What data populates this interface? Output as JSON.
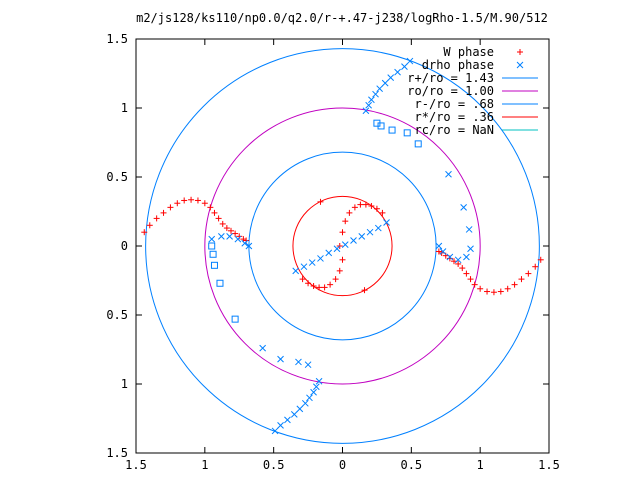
{
  "chart_data": {
    "type": "scatter",
    "title": "m2/js128/ks110/np0.0/q2.0/r-+.47-j238/logRho-1.5/M.90/512",
    "xlabel": "",
    "ylabel": "",
    "xlim": [
      -1.5,
      1.5
    ],
    "ylim": [
      -1.5,
      1.5
    ],
    "x_ticks": [
      "1.5",
      "1",
      "0.5",
      "0",
      "0.5",
      "1",
      "1.5"
    ],
    "y_ticks": [
      "1.5",
      "1",
      "0.5",
      "0",
      "0.5",
      "1",
      "1.5"
    ],
    "grid": false,
    "legend_position": "top-right",
    "legend": [
      {
        "label": "W phase",
        "color": "#ff0000",
        "marker": "plus"
      },
      {
        "label": "drho phase",
        "color": "#0080ff",
        "marker": "cross"
      },
      {
        "label": "r+/ro = 1.43",
        "color": "#0080ff",
        "marker": "line"
      },
      {
        "label": "ro/ro = 1.00",
        "color": "#c000c0",
        "marker": "line"
      },
      {
        "label": "r-/ro = .68",
        "color": "#0080ff",
        "marker": "line"
      },
      {
        "label": "r*/ro = .36",
        "color": "#ff0000",
        "marker": "line"
      },
      {
        "label": "rc/ro = NaN",
        "color": "#00c0c0",
        "marker": "line"
      }
    ],
    "circles": [
      {
        "r": 1.43,
        "color": "#0080ff"
      },
      {
        "r": 1.0,
        "color": "#c000c0"
      },
      {
        "r": 0.68,
        "color": "#0080ff"
      },
      {
        "r": 0.36,
        "color": "#ff0000"
      }
    ],
    "series": [
      {
        "name": "W phase",
        "color": "#ff0000",
        "marker": "plus",
        "points": [
          [
            -1.44,
            0.1
          ],
          [
            -1.4,
            0.15
          ],
          [
            -1.35,
            0.2
          ],
          [
            -1.3,
            0.24
          ],
          [
            -1.25,
            0.28
          ],
          [
            -1.2,
            0.31
          ],
          [
            -1.15,
            0.33
          ],
          [
            -1.1,
            0.335
          ],
          [
            -1.05,
            0.33
          ],
          [
            -1.0,
            0.31
          ],
          [
            -0.96,
            0.28
          ],
          [
            -0.93,
            0.24
          ],
          [
            -0.9,
            0.2
          ],
          [
            -0.87,
            0.16
          ],
          [
            -0.84,
            0.13
          ],
          [
            -0.81,
            0.11
          ],
          [
            -0.78,
            0.09
          ],
          [
            -0.75,
            0.07
          ],
          [
            -0.72,
            0.05
          ],
          [
            -0.7,
            0.04
          ],
          [
            1.44,
            -0.1
          ],
          [
            1.4,
            -0.15
          ],
          [
            1.35,
            -0.2
          ],
          [
            1.3,
            -0.24
          ],
          [
            1.25,
            -0.28
          ],
          [
            1.2,
            -0.31
          ],
          [
            1.15,
            -0.33
          ],
          [
            1.1,
            -0.335
          ],
          [
            1.05,
            -0.33
          ],
          [
            1.0,
            -0.31
          ],
          [
            0.96,
            -0.28
          ],
          [
            0.93,
            -0.24
          ],
          [
            0.9,
            -0.2
          ],
          [
            0.87,
            -0.16
          ],
          [
            0.84,
            -0.13
          ],
          [
            0.81,
            -0.11
          ],
          [
            0.78,
            -0.09
          ],
          [
            0.75,
            -0.07
          ],
          [
            0.72,
            -0.05
          ],
          [
            0.7,
            -0.04
          ],
          [
            -0.16,
            0.32
          ],
          [
            -0.02,
            0.0
          ],
          [
            0.0,
            0.1
          ],
          [
            0.02,
            0.18
          ],
          [
            0.05,
            0.24
          ],
          [
            0.09,
            0.28
          ],
          [
            0.13,
            0.3
          ],
          [
            0.17,
            0.3
          ],
          [
            0.21,
            0.29
          ],
          [
            0.25,
            0.27
          ],
          [
            0.29,
            0.24
          ],
          [
            0.0,
            -0.1
          ],
          [
            -0.02,
            -0.18
          ],
          [
            -0.05,
            -0.24
          ],
          [
            -0.09,
            -0.28
          ],
          [
            -0.13,
            -0.3
          ],
          [
            -0.17,
            -0.3
          ],
          [
            -0.21,
            -0.29
          ],
          [
            -0.25,
            -0.27
          ],
          [
            -0.29,
            -0.24
          ],
          [
            0.16,
            -0.32
          ]
        ]
      },
      {
        "name": "drho phase",
        "color": "#0080ff",
        "marker": "cross",
        "points": [
          [
            0.49,
            1.34
          ],
          [
            0.45,
            1.3
          ],
          [
            0.4,
            1.26
          ],
          [
            0.35,
            1.22
          ],
          [
            0.31,
            1.18
          ],
          [
            0.27,
            1.14
          ],
          [
            0.24,
            1.1
          ],
          [
            0.21,
            1.06
          ],
          [
            0.19,
            1.02
          ],
          [
            0.17,
            0.98
          ],
          [
            0.77,
            0.52
          ],
          [
            0.88,
            0.28
          ],
          [
            0.92,
            0.12
          ],
          [
            0.93,
            -0.02
          ],
          [
            0.9,
            -0.08
          ],
          [
            0.84,
            -0.1
          ],
          [
            0.78,
            -0.08
          ],
          [
            0.73,
            -0.04
          ],
          [
            0.7,
            0.0
          ],
          [
            -0.49,
            -1.34
          ],
          [
            -0.45,
            -1.3
          ],
          [
            -0.4,
            -1.26
          ],
          [
            -0.35,
            -1.22
          ],
          [
            -0.31,
            -1.18
          ],
          [
            -0.27,
            -1.14
          ],
          [
            -0.24,
            -1.1
          ],
          [
            -0.21,
            -1.06
          ],
          [
            -0.19,
            -1.02
          ],
          [
            -0.17,
            -0.98
          ],
          [
            -0.25,
            -0.86
          ],
          [
            -0.32,
            -0.84
          ],
          [
            -0.45,
            -0.82
          ],
          [
            -0.58,
            -0.74
          ],
          [
            -0.34,
            -0.18
          ],
          [
            -0.28,
            -0.15
          ],
          [
            -0.22,
            -0.12
          ],
          [
            -0.16,
            -0.09
          ],
          [
            -0.1,
            -0.05
          ],
          [
            -0.04,
            -0.02
          ],
          [
            0.02,
            0.01
          ],
          [
            0.08,
            0.04
          ],
          [
            0.14,
            0.07
          ],
          [
            0.2,
            0.1
          ],
          [
            0.26,
            0.13
          ],
          [
            0.32,
            0.17
          ],
          [
            -0.95,
            0.05
          ],
          [
            -0.88,
            0.07
          ],
          [
            -0.82,
            0.07
          ],
          [
            -0.76,
            0.05
          ],
          [
            -0.71,
            0.02
          ],
          [
            -0.68,
            0.0
          ]
        ]
      },
      {
        "name": "drho phase (squares)",
        "color": "#0080ff",
        "marker": "square",
        "points": [
          [
            0.25,
            0.89
          ],
          [
            0.28,
            0.87
          ],
          [
            0.36,
            0.84
          ],
          [
            0.47,
            0.82
          ],
          [
            0.55,
            0.74
          ],
          [
            -0.95,
            0.0
          ],
          [
            -0.94,
            -0.06
          ],
          [
            -0.93,
            -0.14
          ],
          [
            -0.89,
            -0.27
          ],
          [
            -0.78,
            -0.53
          ]
        ]
      }
    ]
  }
}
